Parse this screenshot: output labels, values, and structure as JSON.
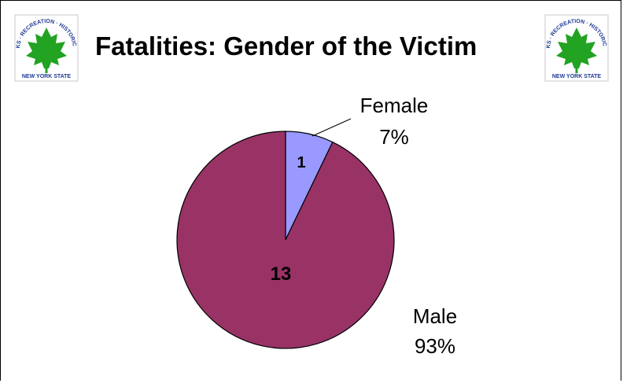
{
  "title": "Fatalities: Gender of the Victim",
  "logo": {
    "text_top": "OFFICE OF PARKS · RECREATION · HISTORIC PRESERVATION",
    "text_bottom": "NEW YORK STATE",
    "color_leaf": "#22a322",
    "color_text": "#1f3a93"
  },
  "chart_data": {
    "type": "pie",
    "title": "Fatalities: Gender of the Victim",
    "slices": [
      {
        "name": "Female",
        "value": 1,
        "percent": "7%",
        "color": "#9999ff"
      },
      {
        "name": "Male",
        "value": 13,
        "percent": "93%",
        "color": "#993366"
      }
    ],
    "start_angle": "12 o'clock",
    "direction": "clockwise",
    "outside_labels": true,
    "inside_value_labels": true
  }
}
